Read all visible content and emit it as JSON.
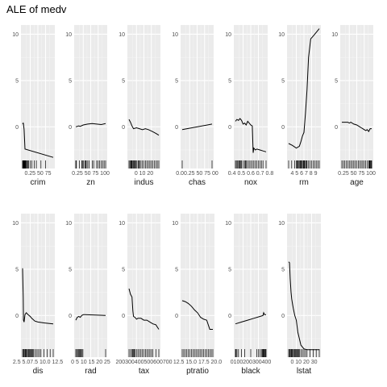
{
  "title": "ALE of medv",
  "chart_data": {
    "type": "line",
    "title": "ALE of medv",
    "ylim": [
      -4.5,
      11
    ],
    "y_ticks": [
      "0",
      "5",
      "10"
    ],
    "y_tick_values": [
      0,
      5,
      10
    ],
    "panels": [
      {
        "feature": "crim",
        "xlim": [
          0,
          1
        ],
        "x": [
          0,
          0.02,
          0.03,
          0.05,
          0.08,
          1.0
        ],
        "y": [
          0.3,
          0.4,
          0.3,
          -0.3,
          -2.4,
          -3.3
        ],
        "x_tick_text": "0.25 50 75",
        "rug": [
          0,
          0.01,
          0.02,
          0.03,
          0.04,
          0.05,
          0.06,
          0.07,
          0.08,
          0.09,
          0.1,
          0.12,
          0.14,
          0.17,
          0.2,
          0.25,
          0.3,
          0.38,
          0.45,
          0.6,
          0.75
        ]
      },
      {
        "feature": "zn",
        "xlim": [
          0,
          1
        ],
        "x": [
          0,
          0.1,
          0.15,
          0.25,
          0.4,
          0.55,
          0.7,
          0.85,
          1.0
        ],
        "y": [
          0,
          0.1,
          0.05,
          0.2,
          0.3,
          0.35,
          0.3,
          0.25,
          0.35
        ],
        "x_tick_text": "0.25 50 75 100",
        "rug": [
          0,
          0.02,
          0.12,
          0.2,
          0.22,
          0.25,
          0.3,
          0.33,
          0.35,
          0.4,
          0.45,
          0.55,
          0.6,
          0.7,
          0.75,
          0.8,
          0.85,
          0.9,
          0.95,
          1.0
        ]
      },
      {
        "feature": "indus",
        "xlim": [
          0,
          1
        ],
        "x": [
          0,
          0.05,
          0.1,
          0.15,
          0.25,
          0.35,
          0.45,
          0.55,
          0.65,
          0.78,
          0.9,
          1.0
        ],
        "y": [
          0.8,
          0.5,
          0.1,
          -0.2,
          -0.1,
          -0.2,
          -0.3,
          -0.2,
          -0.3,
          -0.5,
          -0.7,
          -0.9
        ],
        "x_tick_text": "0 10 20",
        "rug": [
          0,
          0.03,
          0.06,
          0.08,
          0.1,
          0.13,
          0.15,
          0.18,
          0.2,
          0.22,
          0.25,
          0.3,
          0.33,
          0.35,
          0.4,
          0.45,
          0.5,
          0.55,
          0.6,
          0.65,
          0.7,
          0.75,
          0.8,
          0.85,
          0.9,
          0.95,
          1.0
        ]
      },
      {
        "feature": "chas",
        "xlim": [
          0,
          1
        ],
        "x": [
          0,
          1
        ],
        "y": [
          -0.3,
          0.3
        ],
        "x_tick_text": "0.00.25 50 75 00",
        "rug": [
          0,
          1
        ]
      },
      {
        "feature": "nox",
        "xlim": [
          0,
          1
        ],
        "x": [
          0,
          0.05,
          0.1,
          0.15,
          0.2,
          0.25,
          0.3,
          0.35,
          0.4,
          0.45,
          0.5,
          0.55,
          0.58,
          0.6,
          0.65,
          0.7,
          0.8,
          0.9,
          1.0
        ],
        "y": [
          0.6,
          0.8,
          0.7,
          0.9,
          0.7,
          0.3,
          0.4,
          0.2,
          0.6,
          0.4,
          0.2,
          0.1,
          -2.8,
          -2.3,
          -2.5,
          -2.4,
          -2.5,
          -2.6,
          -2.7
        ],
        "x_tick_text": "0.4 0.5 0.6 0.7 0.8",
        "rug": [
          0,
          0.03,
          0.06,
          0.1,
          0.13,
          0.15,
          0.18,
          0.2,
          0.25,
          0.3,
          0.33,
          0.36,
          0.4,
          0.45,
          0.5,
          0.55,
          0.6,
          0.65,
          0.7,
          0.75,
          0.8,
          0.85,
          0.9,
          1.0
        ]
      },
      {
        "feature": "rm",
        "xlim": [
          0,
          1
        ],
        "x": [
          0,
          0.12,
          0.25,
          0.35,
          0.4,
          0.45,
          0.5,
          0.55,
          0.6,
          0.65,
          0.72,
          0.8,
          0.9,
          1.0
        ],
        "y": [
          -1.8,
          -2.0,
          -2.3,
          -2.1,
          -1.6,
          -1.0,
          -0.6,
          1.5,
          4.0,
          7.5,
          9.5,
          9.8,
          10.2,
          10.6
        ],
        "x_tick_text": "4 5 6 7 8 9",
        "rug": [
          0,
          0.1,
          0.2,
          0.25,
          0.28,
          0.3,
          0.32,
          0.35,
          0.38,
          0.4,
          0.42,
          0.45,
          0.48,
          0.5,
          0.52,
          0.55,
          0.58,
          0.6,
          0.65,
          0.7,
          0.75,
          0.8,
          0.85,
          0.9,
          0.95,
          1.0
        ]
      },
      {
        "feature": "age",
        "xlim": [
          0,
          1
        ],
        "x": [
          0,
          0.1,
          0.2,
          0.25,
          0.3,
          0.4,
          0.5,
          0.6,
          0.65,
          0.7,
          0.75,
          0.8,
          0.85,
          0.9,
          0.95,
          1.0
        ],
        "y": [
          0.5,
          0.5,
          0.5,
          0.4,
          0.5,
          0.3,
          0.2,
          0.0,
          -0.1,
          -0.2,
          -0.3,
          -0.4,
          -0.3,
          -0.5,
          -0.2,
          -0.2
        ],
        "x_tick_text": "0.25 50 75 100",
        "rug": [
          0,
          0.05,
          0.1,
          0.15,
          0.2,
          0.25,
          0.3,
          0.35,
          0.4,
          0.45,
          0.5,
          0.55,
          0.6,
          0.65,
          0.7,
          0.75,
          0.8,
          0.85,
          0.9,
          0.92,
          0.94,
          0.96,
          0.98,
          1.0
        ]
      },
      {
        "feature": "dis",
        "xlim": [
          0,
          1
        ],
        "x": [
          0,
          0.02,
          0.03,
          0.05,
          0.08,
          0.12,
          0.18,
          0.25,
          0.3,
          0.4,
          0.5,
          0.7,
          1.0
        ],
        "y": [
          5.1,
          2.0,
          -0.5,
          -0.7,
          0.1,
          0.3,
          0.1,
          -0.1,
          -0.3,
          -0.6,
          -0.7,
          -0.8,
          -0.9
        ],
        "x_tick_text": "2.5 5.07.5 10.0 12.5",
        "rug": [
          0,
          0.03,
          0.05,
          0.08,
          0.1,
          0.12,
          0.15,
          0.18,
          0.2,
          0.22,
          0.25,
          0.28,
          0.3,
          0.33,
          0.36,
          0.4,
          0.45,
          0.5,
          0.55,
          0.6,
          0.7,
          0.8,
          0.9,
          1.0
        ]
      },
      {
        "feature": "rad",
        "xlim": [
          0,
          1
        ],
        "x": [
          0,
          0.05,
          0.1,
          0.15,
          0.2,
          0.25,
          0.3,
          1.0
        ],
        "y": [
          -0.5,
          -0.2,
          -0.1,
          -0.2,
          0.0,
          0.1,
          0.1,
          0.0
        ],
        "x_tick_text": "0 5 10 15 20 25",
        "rug": [
          0,
          0.03,
          0.06,
          0.09,
          0.12,
          0.15,
          0.18,
          0.21,
          0.24,
          1.0
        ]
      },
      {
        "feature": "tax",
        "xlim": [
          0,
          1
        ],
        "x": [
          0,
          0.05,
          0.1,
          0.13,
          0.15,
          0.2,
          0.25,
          0.3,
          0.4,
          0.5,
          0.6,
          0.7,
          0.8,
          0.9,
          1.0
        ],
        "y": [
          2.9,
          2.3,
          2.0,
          0.5,
          -0.1,
          -0.2,
          -0.4,
          -0.3,
          -0.3,
          -0.5,
          -0.5,
          -0.7,
          -0.9,
          -1.0,
          -1.5
        ],
        "x_tick_text": "200300400500600700",
        "rug": [
          0,
          0.05,
          0.1,
          0.12,
          0.15,
          0.18,
          0.2,
          0.25,
          0.3,
          0.35,
          0.4,
          0.45,
          0.5,
          0.55,
          0.6,
          0.65,
          0.7,
          0.75,
          0.8,
          0.9,
          1.0
        ]
      },
      {
        "feature": "ptratio",
        "xlim": [
          0,
          1
        ],
        "x": [
          0,
          0.1,
          0.2,
          0.3,
          0.35,
          0.4,
          0.5,
          0.6,
          0.7,
          0.8,
          0.85,
          0.9,
          1.0
        ],
        "y": [
          1.6,
          1.5,
          1.3,
          1.0,
          0.8,
          0.6,
          0.3,
          -0.2,
          -0.4,
          -0.5,
          -1.0,
          -1.5,
          -1.5
        ],
        "x_tick_text": "12.5 15.0 17.5 20.0",
        "rug": [
          0,
          0.05,
          0.1,
          0.15,
          0.2,
          0.25,
          0.3,
          0.35,
          0.4,
          0.45,
          0.5,
          0.55,
          0.6,
          0.65,
          0.7,
          0.75,
          0.8,
          0.85,
          0.9,
          0.95,
          1.0
        ]
      },
      {
        "feature": "black",
        "xlim": [
          0,
          1
        ],
        "x": [
          0,
          0.2,
          0.4,
          0.6,
          0.8,
          0.9,
          0.92,
          0.95,
          1.0
        ],
        "y": [
          -0.9,
          -0.7,
          -0.5,
          -0.3,
          -0.1,
          0.0,
          0.3,
          0.1,
          0.1
        ],
        "x_tick_text": "0100200300400",
        "rug": [
          0,
          0.02,
          0.05,
          0.1,
          0.2,
          0.3,
          0.5,
          0.7,
          0.75,
          0.8,
          0.85,
          0.88,
          0.9,
          0.92,
          0.94,
          0.96,
          0.98,
          1.0
        ]
      },
      {
        "feature": "lstat",
        "xlim": [
          0,
          1
        ],
        "x": [
          0,
          0.03,
          0.05,
          0.08,
          0.1,
          0.13,
          0.15,
          0.2,
          0.25,
          0.3,
          0.35,
          0.4,
          0.5,
          0.6,
          0.7,
          0.8,
          0.9,
          1.0
        ],
        "y": [
          5.8,
          5.7,
          4.0,
          2.5,
          1.8,
          1.2,
          0.8,
          0.0,
          -0.5,
          -1.8,
          -2.5,
          -3.2,
          -3.6,
          -3.7,
          -3.7,
          -3.7,
          -3.7,
          -3.7
        ],
        "x_tick_text": "0 10 20 30",
        "rug": [
          0,
          0.03,
          0.05,
          0.08,
          0.1,
          0.12,
          0.15,
          0.18,
          0.2,
          0.22,
          0.25,
          0.28,
          0.3,
          0.33,
          0.36,
          0.4,
          0.45,
          0.5,
          0.55,
          0.6,
          0.7,
          0.8,
          0.9,
          1.0
        ]
      }
    ]
  }
}
